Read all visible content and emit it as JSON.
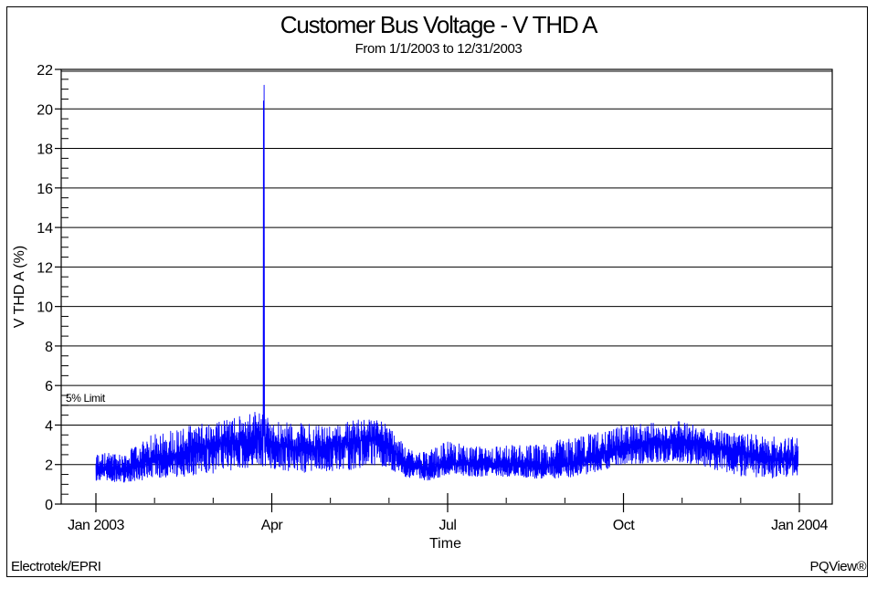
{
  "chart_data": {
    "type": "line",
    "title": "Customer Bus Voltage - V THD A",
    "subtitle": "From 1/1/2003 to 12/31/2003",
    "xlabel": "Time",
    "ylabel": "V THD A (%)",
    "ylim": [
      0,
      22
    ],
    "yticks": [
      0,
      2,
      4,
      6,
      8,
      10,
      12,
      14,
      16,
      18,
      20,
      22
    ],
    "y_minor_step": 0.5,
    "xticks": [
      {
        "label": "Jan 2003",
        "month": 0
      },
      {
        "label": "Apr",
        "month": 3
      },
      {
        "label": "Jul",
        "month": 6
      },
      {
        "label": "Oct",
        "month": 9
      },
      {
        "label": "Jan 2004",
        "month": 12
      }
    ],
    "x_minor_months": [
      1,
      2,
      4,
      5,
      7,
      8,
      10,
      11
    ],
    "grid": {
      "horizontal": true,
      "vertical": false
    },
    "reference_lines": [
      {
        "label": "5% Limit",
        "y": 5
      }
    ],
    "series": [
      {
        "name": "V THD A",
        "color": "#0000ff",
        "envelope_by_month": {
          "months": [
            0.0,
            0.5,
            1.0,
            1.5,
            2.0,
            2.5,
            2.8,
            3.0,
            3.5,
            4.0,
            4.5,
            4.8,
            5.0,
            5.3,
            5.7,
            6.0,
            6.5,
            7.0,
            7.5,
            8.0,
            8.5,
            9.0,
            9.5,
            10.0,
            10.5,
            11.0,
            11.5,
            12.0
          ],
          "mean": [
            1.7,
            1.8,
            2.3,
            2.6,
            3.0,
            3.2,
            3.3,
            3.0,
            2.8,
            2.9,
            3.2,
            3.4,
            2.9,
            2.0,
            1.8,
            2.1,
            2.0,
            2.0,
            1.9,
            2.0,
            2.4,
            2.9,
            3.1,
            3.2,
            3.0,
            2.6,
            2.3,
            2.3
          ],
          "low": [
            1.2,
            1.1,
            1.3,
            1.4,
            1.5,
            1.8,
            1.9,
            1.7,
            1.6,
            1.6,
            1.8,
            2.0,
            1.7,
            1.3,
            1.2,
            1.5,
            1.4,
            1.4,
            1.3,
            1.3,
            1.6,
            2.0,
            2.1,
            2.1,
            1.8,
            1.4,
            1.3,
            1.4
          ],
          "high": [
            2.6,
            2.6,
            3.6,
            3.9,
            4.2,
            4.5,
            4.8,
            4.2,
            4.1,
            4.0,
            4.3,
            4.3,
            4.0,
            2.8,
            2.7,
            3.2,
            2.9,
            3.0,
            3.0,
            3.3,
            3.6,
            4.0,
            4.1,
            4.2,
            3.8,
            3.6,
            3.4,
            3.5
          ]
        },
        "peak": {
          "month": 2.87,
          "value": 21.2,
          "secondary_value": 20.4
        },
        "range_start_month": 0.0,
        "range_end_month": 11.98
      }
    ]
  },
  "footer": {
    "left": "Electrotek/EPRI",
    "right": "PQView®"
  }
}
